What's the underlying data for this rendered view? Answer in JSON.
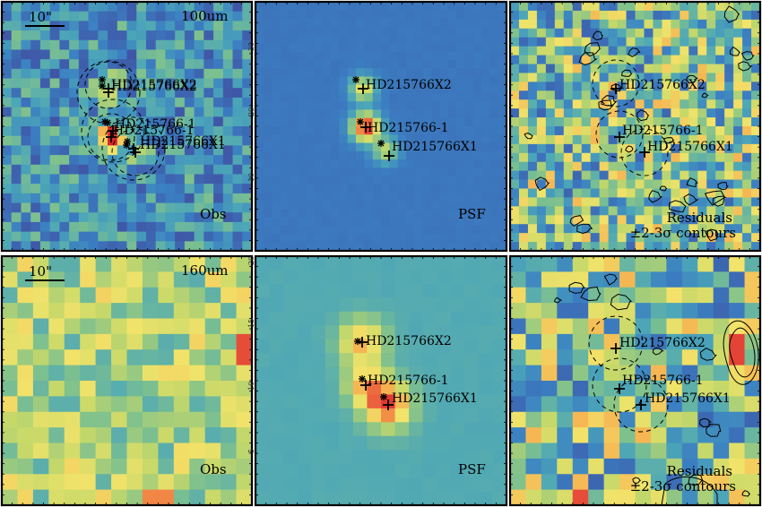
{
  "figure": {
    "rows": [
      {
        "band": "100um",
        "panels": [
          {
            "kind": "obs",
            "label": "Obs",
            "band_label": "100um",
            "scalebar_label": "10\""
          },
          {
            "kind": "psf",
            "label": "PSF"
          },
          {
            "kind": "res",
            "label_line1": "Residuals",
            "label_line2": "±2-3σ contours"
          }
        ]
      },
      {
        "band": "160um",
        "panels": [
          {
            "kind": "obs",
            "label": "Obs",
            "band_label": "160um",
            "scalebar_label": "10\""
          },
          {
            "kind": "psf",
            "label": "PSF"
          },
          {
            "kind": "res",
            "label_line1": "Residuals",
            "label_line2": "±2-3σ contours"
          }
        ]
      }
    ],
    "sources": [
      "HD215766X2",
      "HD215766-1",
      "HD215766X1"
    ],
    "tick_labels_top": [
      "30",
      "20",
      "10"
    ],
    "tick_labels_bottom": [
      "20",
      "15",
      "10",
      "5"
    ],
    "colormap": [
      "#5e2a8c",
      "#3f56a6",
      "#3b7fc2",
      "#4ca6b8",
      "#7dc08f",
      "#c5d86a",
      "#f2e36a",
      "#f6a64b",
      "#e8523a",
      "#d8202a"
    ],
    "frame_color": "#000000",
    "contour_color": "#000000"
  }
}
